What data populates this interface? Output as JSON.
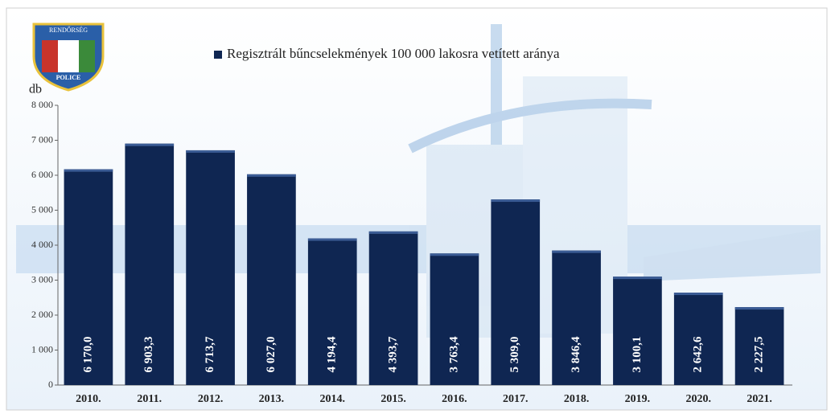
{
  "logo": {
    "top": "RENDŐRSÉG",
    "bottom": "POLICE"
  },
  "chart_data": {
    "type": "bar",
    "y_axis_label": "db",
    "categories": [
      "2010.",
      "2011.",
      "2012.",
      "2013.",
      "2014.",
      "2015.",
      "2016.",
      "2017.",
      "2018.",
      "2019.",
      "2020.",
      "2021."
    ],
    "series": [
      {
        "name": "Regisztrált bűncselekmények 100 000 lakosra vetített aránya",
        "color": "#0f2652",
        "values": [
          6170.0,
          6903.3,
          6713.7,
          6027.0,
          4194.4,
          4393.7,
          3763.4,
          5309.0,
          3846.4,
          3100.1,
          2642.6,
          2227.5
        ],
        "value_labels": [
          "6 170,0",
          "6 903,3",
          "6 713,7",
          "6 027,0",
          "4 194,4",
          "4 393,7",
          "3 763,4",
          "5 309,0",
          "3 846,4",
          "3 100,1",
          "2 642,6",
          "2 227,5"
        ]
      }
    ],
    "ylim": [
      0,
      8000
    ],
    "yticks": [
      0,
      {
        "value": 1000,
        "label": "1 000"
      },
      {
        "value": 2000,
        "label": "2 000"
      },
      {
        "value": 3000,
        "label": "3 000"
      },
      {
        "value": 4000,
        "label": "4 000"
      },
      {
        "value": 5000,
        "label": "5 000"
      },
      {
        "value": 6000,
        "label": "6 000"
      },
      {
        "value": 7000,
        "label": "7 000"
      },
      {
        "value": 8000,
        "label": "8 000"
      }
    ],
    "legend": "top"
  }
}
